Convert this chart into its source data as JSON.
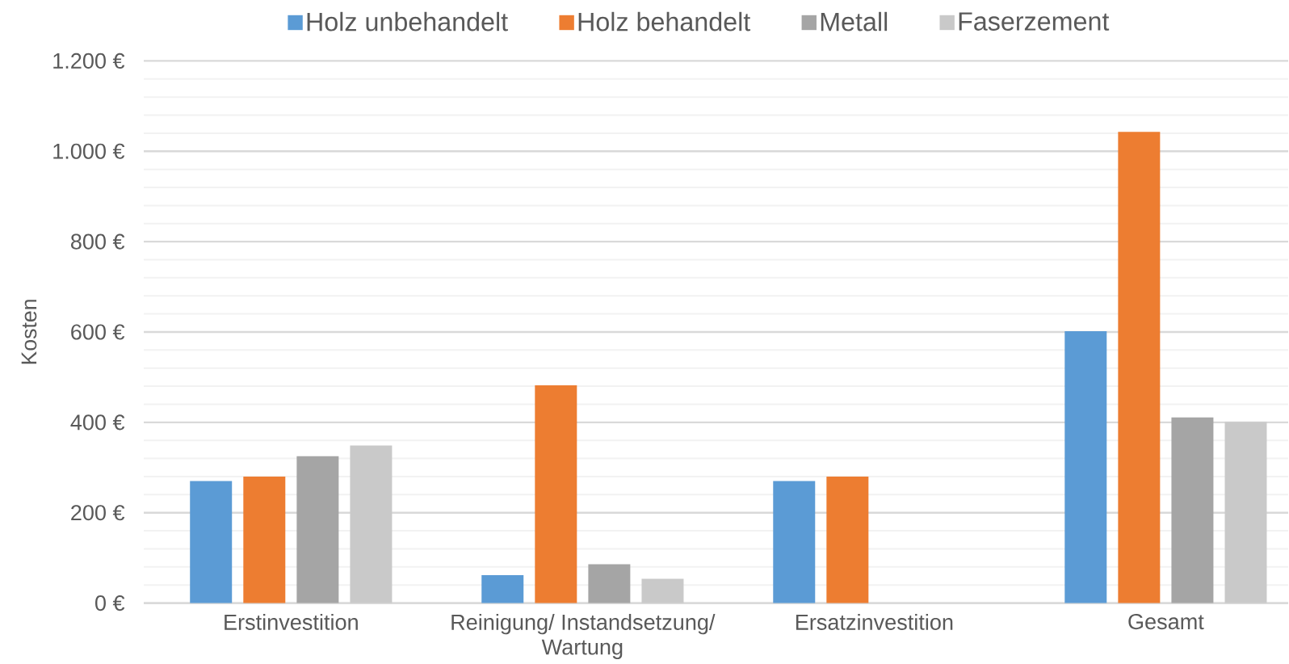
{
  "chart_data": {
    "type": "bar",
    "categories": [
      "Erstinvestition",
      "Reinigung/ Instandsetzung/ Wartung",
      "Ersatzinvestition",
      "Gesamt"
    ],
    "ylabel": "Kosten",
    "ylim": [
      0,
      1200
    ],
    "yticks": [
      {
        "value": 0,
        "label": "0 €"
      },
      {
        "value": 200,
        "label": "200 €"
      },
      {
        "value": 400,
        "label": "400 €"
      },
      {
        "value": 600,
        "label": "600 €"
      },
      {
        "value": 800,
        "label": "800 €"
      },
      {
        "value": 1000,
        "label": "1.000 €"
      },
      {
        "value": 1200,
        "label": "1.200 €"
      }
    ],
    "grid": "y",
    "legend": "top",
    "series": [
      {
        "name": "Holz unbehandelt",
        "color": "#5b9bd5",
        "values": [
          270,
          62,
          270,
          602
        ]
      },
      {
        "name": "Holz behandelt",
        "color": "#ed7d31",
        "values": [
          280,
          482,
          280,
          1043
        ]
      },
      {
        "name": "Metall",
        "color": "#a5a5a5",
        "values": [
          325,
          86,
          null,
          411
        ]
      },
      {
        "name": "Faserzement",
        "color": "#c9c9c9",
        "values": [
          349,
          54,
          null,
          401
        ]
      }
    ]
  }
}
